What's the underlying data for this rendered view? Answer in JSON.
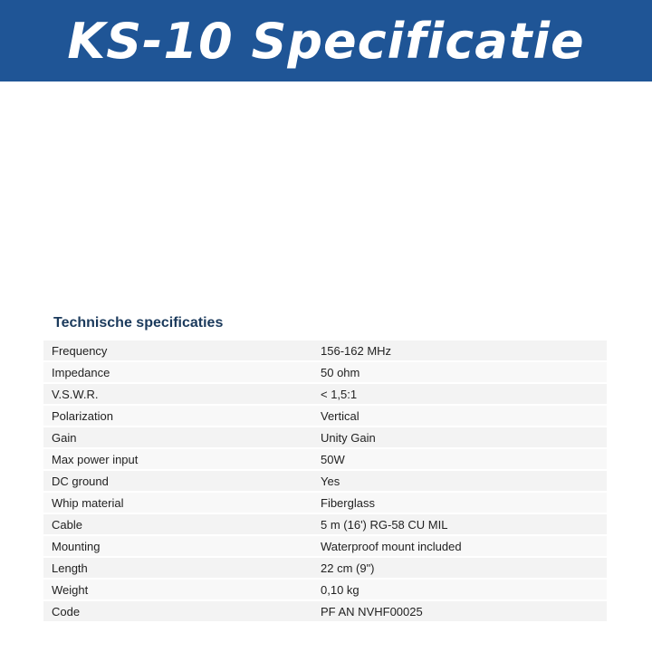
{
  "header": {
    "title": "KS-10 Specificatie",
    "color": "#1f5596"
  },
  "section_title": "Technische specificaties",
  "specs": [
    {
      "label": "Frequency",
      "value": "156-162 MHz"
    },
    {
      "label": "Impedance",
      "value": "50 ohm"
    },
    {
      "label": "V.S.W.R.",
      "value": "< 1,5:1"
    },
    {
      "label": "Polarization",
      "value": "Vertical"
    },
    {
      "label": "Gain",
      "value": "Unity Gain"
    },
    {
      "label": "Max power input",
      "value": "50W"
    },
    {
      "label": "DC ground",
      "value": "Yes"
    },
    {
      "label": "Whip material",
      "value": "Fiberglass"
    },
    {
      "label": "Cable",
      "value": "5 m (16') RG-58 CU MIL"
    },
    {
      "label": "Mounting",
      "value": "Waterproof mount included"
    },
    {
      "label": "Length",
      "value": "22 cm (9\")"
    },
    {
      "label": "Weight",
      "value": "0,10 kg"
    },
    {
      "label": "Code",
      "value": "PF AN NVHF00025"
    }
  ]
}
